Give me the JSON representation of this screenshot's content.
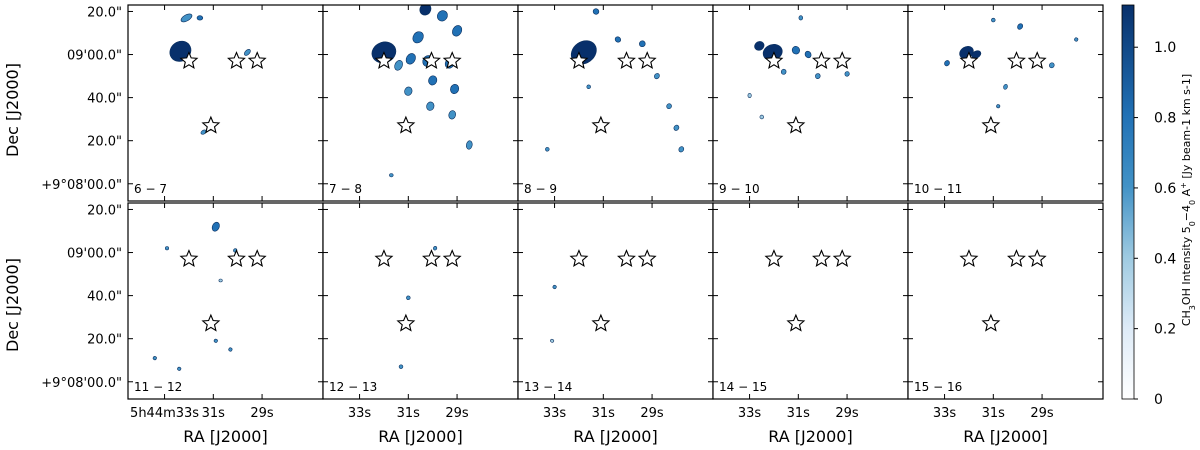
{
  "chart_data": {
    "type": "heatmap",
    "title": "",
    "grid": false,
    "layout": {
      "rows": 2,
      "cols": 5
    },
    "xlabel": "RA [J2000]",
    "ylabel": "Dec [J2000]",
    "x_tick_labels_first": [
      "5h44m33s",
      "31s",
      "29s"
    ],
    "x_tick_labels_other": [
      "33s",
      "31s",
      "29s"
    ],
    "x_tick_values_s": [
      33,
      31,
      29
    ],
    "y_tick_labels": [
      "20.0\"",
      "09'00.0\"",
      "40.0\"",
      "20.0\"",
      "+9°08'00.0\""
    ],
    "y_tick_values_arcsec": [
      140,
      120,
      100,
      80,
      60
    ],
    "xlim_s": [
      34.5,
      26.5
    ],
    "ylim_arcsec": [
      52,
      143
    ],
    "colorbar": {
      "label_main": "CH",
      "label_sub1": "3",
      "label_mid": "OH Intensity 5",
      "label_sub2": "0",
      "label_dash": "−4",
      "label_sub3": "0",
      "label_a": " A",
      "label_sup": "+",
      "label_units": " [Jy beam-1 km s-1]",
      "ticks": [
        0,
        0.2,
        0.4,
        0.6,
        0.8,
        1.0
      ],
      "tick_labels": [
        "0",
        "0.2",
        "0.4",
        "0.6",
        "0.8",
        "1.0"
      ],
      "range": [
        0,
        1.12
      ],
      "colors": [
        "#ffffff",
        "#deebf7",
        "#9ecae1",
        "#4292c6",
        "#2171b5",
        "#08306b"
      ]
    },
    "stars": [
      {
        "ra_s": 32.0,
        "dec_arcsec": 117
      },
      {
        "ra_s": 30.05,
        "dec_arcsec": 117
      },
      {
        "ra_s": 29.2,
        "dec_arcsec": 117
      },
      {
        "ra_s": 31.1,
        "dec_arcsec": 87
      }
    ],
    "panels": [
      {
        "label": "6 − 7",
        "peak": 1.05,
        "emission": [
          {
            "ra": 32.35,
            "dec": 121.5,
            "rx": 0.45,
            "ry": 4.5,
            "rot": -35,
            "v": 1.0
          },
          {
            "ra": 32.1,
            "dec": 137,
            "rx": 0.25,
            "ry": 1.4,
            "rot": -30,
            "v": 0.5
          },
          {
            "ra": 31.55,
            "dec": 137,
            "rx": 0.12,
            "ry": 1.0,
            "rot": 0,
            "v": 0.7
          },
          {
            "ra": 29.6,
            "dec": 121,
            "rx": 0.15,
            "ry": 1.0,
            "rot": -45,
            "v": 0.6
          },
          {
            "ra": 31.4,
            "dec": 84,
            "rx": 0.12,
            "ry": 0.9,
            "rot": -30,
            "v": 0.6
          }
        ]
      },
      {
        "label": "7 − 8",
        "peak": 1.1,
        "emission": [
          {
            "ra": 32.0,
            "dec": 121,
            "rx": 0.5,
            "ry": 4.8,
            "rot": -20,
            "v": 1.0
          },
          {
            "ra": 30.3,
            "dec": 141,
            "rx": 0.22,
            "ry": 2.8,
            "rot": 35,
            "v": 0.9
          },
          {
            "ra": 29.6,
            "dec": 138,
            "rx": 0.2,
            "ry": 2.5,
            "rot": 35,
            "v": 0.8
          },
          {
            "ra": 30.6,
            "dec": 128,
            "rx": 0.2,
            "ry": 2.8,
            "rot": 35,
            "v": 0.8
          },
          {
            "ra": 29.0,
            "dec": 131,
            "rx": 0.18,
            "ry": 2.6,
            "rot": 30,
            "v": 0.75
          },
          {
            "ra": 30.9,
            "dec": 118,
            "rx": 0.18,
            "ry": 2.6,
            "rot": 30,
            "v": 0.7
          },
          {
            "ra": 30.2,
            "dec": 117,
            "rx": 0.2,
            "ry": 2.6,
            "rot": 30,
            "v": 0.75
          },
          {
            "ra": 29.3,
            "dec": 116,
            "rx": 0.18,
            "ry": 2.4,
            "rot": 30,
            "v": 0.7
          },
          {
            "ra": 31.4,
            "dec": 115,
            "rx": 0.15,
            "ry": 2.4,
            "rot": 25,
            "v": 0.6
          },
          {
            "ra": 30.0,
            "dec": 108,
            "rx": 0.17,
            "ry": 2.2,
            "rot": 20,
            "v": 0.7
          },
          {
            "ra": 29.1,
            "dec": 104,
            "rx": 0.17,
            "ry": 2.2,
            "rot": 20,
            "v": 0.7
          },
          {
            "ra": 31.0,
            "dec": 103,
            "rx": 0.15,
            "ry": 2.0,
            "rot": 20,
            "v": 0.6
          },
          {
            "ra": 30.1,
            "dec": 96,
            "rx": 0.15,
            "ry": 2.0,
            "rot": 15,
            "v": 0.65
          },
          {
            "ra": 29.2,
            "dec": 92,
            "rx": 0.14,
            "ry": 2.0,
            "rot": 15,
            "v": 0.6
          },
          {
            "ra": 28.5,
            "dec": 78,
            "rx": 0.12,
            "ry": 2.0,
            "rot": 10,
            "v": 0.6
          },
          {
            "ra": 31.7,
            "dec": 64,
            "rx": 0.08,
            "ry": 0.8,
            "rot": 0,
            "v": 0.5
          }
        ]
      },
      {
        "label": "8 − 9",
        "peak": 1.1,
        "emission": [
          {
            "ra": 31.8,
            "dec": 121,
            "rx": 0.55,
            "ry": 5.0,
            "rot": -35,
            "v": 1.0
          },
          {
            "ra": 31.3,
            "dec": 140,
            "rx": 0.12,
            "ry": 1.3,
            "rot": 30,
            "v": 0.8
          },
          {
            "ra": 30.4,
            "dec": 127,
            "rx": 0.12,
            "ry": 1.2,
            "rot": 35,
            "v": 0.7
          },
          {
            "ra": 29.4,
            "dec": 125,
            "rx": 0.12,
            "ry": 1.4,
            "rot": 40,
            "v": 0.7
          },
          {
            "ra": 28.8,
            "dec": 110,
            "rx": 0.1,
            "ry": 1.3,
            "rot": 35,
            "v": 0.6
          },
          {
            "ra": 28.3,
            "dec": 96,
            "rx": 0.1,
            "ry": 1.2,
            "rot": 30,
            "v": 0.6
          },
          {
            "ra": 28.0,
            "dec": 86,
            "rx": 0.1,
            "ry": 1.3,
            "rot": 30,
            "v": 0.6
          },
          {
            "ra": 27.8,
            "dec": 76,
            "rx": 0.1,
            "ry": 1.3,
            "rot": 30,
            "v": 0.6
          },
          {
            "ra": 33.3,
            "dec": 76,
            "rx": 0.08,
            "ry": 0.9,
            "rot": 30,
            "v": 0.5
          },
          {
            "ra": 31.6,
            "dec": 105,
            "rx": 0.08,
            "ry": 0.9,
            "rot": 30,
            "v": 0.5
          }
        ]
      },
      {
        "label": "9 − 10",
        "peak": 1.05,
        "emission": [
          {
            "ra": 32.05,
            "dec": 121,
            "rx": 0.4,
            "ry": 3.6,
            "rot": -20,
            "v": 1.0
          },
          {
            "ra": 32.6,
            "dec": 124,
            "rx": 0.2,
            "ry": 2.0,
            "rot": -30,
            "v": 0.9
          },
          {
            "ra": 31.1,
            "dec": 122,
            "rx": 0.15,
            "ry": 1.8,
            "rot": -30,
            "v": 0.8
          },
          {
            "ra": 30.6,
            "dec": 120,
            "rx": 0.12,
            "ry": 1.6,
            "rot": -30,
            "v": 0.7
          },
          {
            "ra": 31.6,
            "dec": 112,
            "rx": 0.1,
            "ry": 1.2,
            "rot": 20,
            "v": 0.6
          },
          {
            "ra": 30.2,
            "dec": 110,
            "rx": 0.1,
            "ry": 1.2,
            "rot": 20,
            "v": 0.5
          },
          {
            "ra": 29.0,
            "dec": 111,
            "rx": 0.09,
            "ry": 1.1,
            "rot": 20,
            "v": 0.5
          },
          {
            "ra": 30.9,
            "dec": 137,
            "rx": 0.08,
            "ry": 1.0,
            "rot": 0,
            "v": 0.5
          },
          {
            "ra": 33.0,
            "dec": 101,
            "rx": 0.07,
            "ry": 1.0,
            "rot": 0,
            "v": 0.45
          },
          {
            "ra": 32.5,
            "dec": 91,
            "rx": 0.08,
            "ry": 0.9,
            "rot": 0,
            "v": 0.45
          }
        ]
      },
      {
        "label": "10 − 11",
        "peak": 1.0,
        "emission": [
          {
            "ra": 32.1,
            "dec": 121,
            "rx": 0.3,
            "ry": 2.6,
            "rot": -30,
            "v": 0.95
          },
          {
            "ra": 31.7,
            "dec": 120,
            "rx": 0.2,
            "ry": 1.6,
            "rot": -30,
            "v": 0.9
          },
          {
            "ra": 31.0,
            "dec": 136,
            "rx": 0.08,
            "ry": 0.9,
            "rot": 10,
            "v": 0.6
          },
          {
            "ra": 29.9,
            "dec": 133,
            "rx": 0.1,
            "ry": 1.4,
            "rot": 35,
            "v": 0.7
          },
          {
            "ra": 27.6,
            "dec": 127,
            "rx": 0.07,
            "ry": 0.8,
            "rot": 30,
            "v": 0.55
          },
          {
            "ra": 32.9,
            "dec": 116,
            "rx": 0.1,
            "ry": 1.3,
            "rot": 30,
            "v": 0.7
          },
          {
            "ra": 28.6,
            "dec": 115,
            "rx": 0.1,
            "ry": 1.2,
            "rot": 30,
            "v": 0.6
          },
          {
            "ra": 30.5,
            "dec": 105,
            "rx": 0.08,
            "ry": 1.2,
            "rot": 20,
            "v": 0.6
          },
          {
            "ra": 30.8,
            "dec": 96,
            "rx": 0.07,
            "ry": 0.8,
            "rot": 20,
            "v": 0.5
          }
        ]
      },
      {
        "label": "11 − 12",
        "peak": 0.8,
        "emission": [
          {
            "ra": 30.9,
            "dec": 132,
            "rx": 0.14,
            "ry": 2.2,
            "rot": 25,
            "v": 0.8
          },
          {
            "ra": 32.9,
            "dec": 122,
            "rx": 0.07,
            "ry": 0.8,
            "rot": 0,
            "v": 0.5
          },
          {
            "ra": 30.1,
            "dec": 121,
            "rx": 0.07,
            "ry": 0.9,
            "rot": 30,
            "v": 0.5
          },
          {
            "ra": 30.7,
            "dec": 107,
            "rx": 0.07,
            "ry": 0.7,
            "rot": 0,
            "v": 0.45
          },
          {
            "ra": 33.4,
            "dec": 71,
            "rx": 0.07,
            "ry": 0.8,
            "rot": 30,
            "v": 0.6
          },
          {
            "ra": 32.4,
            "dec": 66,
            "rx": 0.07,
            "ry": 0.8,
            "rot": 30,
            "v": 0.6
          },
          {
            "ra": 30.9,
            "dec": 79,
            "rx": 0.07,
            "ry": 0.8,
            "rot": 30,
            "v": 0.55
          },
          {
            "ra": 30.3,
            "dec": 75,
            "rx": 0.07,
            "ry": 0.8,
            "rot": 30,
            "v": 0.55
          }
        ]
      },
      {
        "label": "12 − 13",
        "peak": 0.65,
        "emission": [
          {
            "ra": 29.9,
            "dec": 122,
            "rx": 0.07,
            "ry": 0.9,
            "rot": 30,
            "v": 0.55
          },
          {
            "ra": 31.0,
            "dec": 99,
            "rx": 0.08,
            "ry": 0.9,
            "rot": 30,
            "v": 0.6
          },
          {
            "ra": 31.3,
            "dec": 67,
            "rx": 0.08,
            "ry": 0.9,
            "rot": 30,
            "v": 0.55
          }
        ]
      },
      {
        "label": "13 − 14",
        "peak": 0.5,
        "emission": [
          {
            "ra": 33.0,
            "dec": 104,
            "rx": 0.07,
            "ry": 0.8,
            "rot": 30,
            "v": 0.5
          },
          {
            "ra": 33.1,
            "dec": 79,
            "rx": 0.07,
            "ry": 0.7,
            "rot": 30,
            "v": 0.45
          }
        ]
      },
      {
        "label": "14 − 15",
        "peak": 0.0,
        "emission": []
      },
      {
        "label": "15 − 16",
        "peak": 0.0,
        "emission": []
      }
    ]
  }
}
